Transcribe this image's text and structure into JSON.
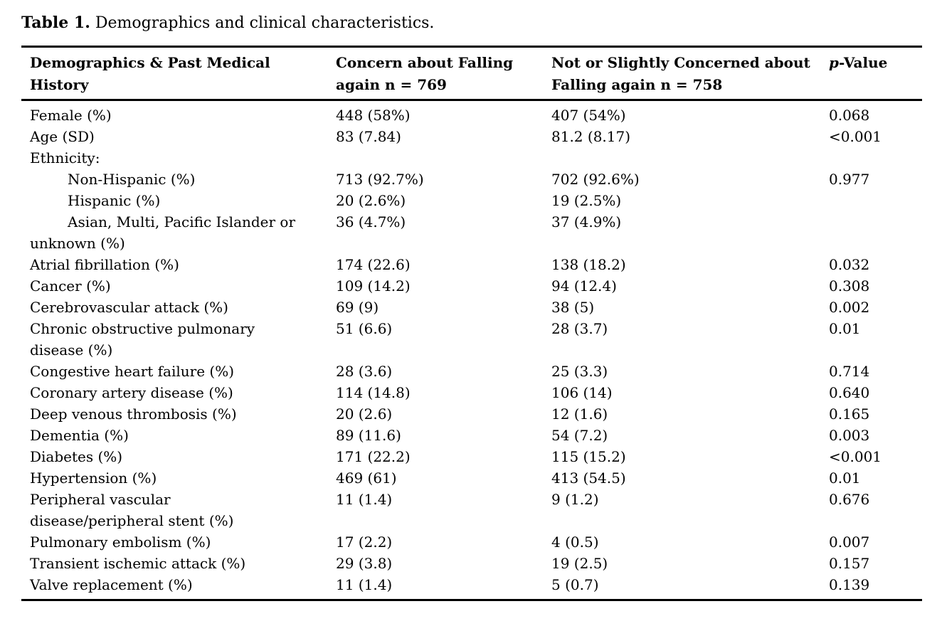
{
  "caption": {
    "label": "Table 1.",
    "text": " Demographics and clinical characteristics."
  },
  "table": {
    "headers": {
      "demographics": "Demographics & Past Medical\nHistory",
      "concern": "Concern about Falling\nagain n = 769",
      "not_concerned": "Not or Slightly Concerned about\nFalling again n = 758",
      "p_italic": "p",
      "p_rest": "-Value"
    },
    "rows": [
      {
        "label": "Female (%)",
        "concern": "448 (58%)",
        "not_concerned": "407 (54%)",
        "p": "0.068"
      },
      {
        "label": "Age (SD)",
        "concern": "83 (7.84)",
        "not_concerned": "81.2 (8.17)",
        "p": "<0.001"
      },
      {
        "label": "Ethnicity:",
        "concern": "",
        "not_concerned": "",
        "p": ""
      },
      {
        "label": "Non-Hispanic (%)",
        "concern": "713 (92.7%)",
        "not_concerned": "702 (92.6%)",
        "p": "0.977"
      },
      {
        "label": "Hispanic (%)",
        "concern": "20 (2.6%)",
        "not_concerned": "19 (2.5%)",
        "p": ""
      },
      {
        "label": "Asian, Multi, Pacific Islander or\nunknown (%)",
        "concern": "36 (4.7%)",
        "not_concerned": "37 (4.9%)",
        "p": ""
      },
      {
        "label": "Atrial fibrillation (%)",
        "concern": "174 (22.6)",
        "not_concerned": "138 (18.2)",
        "p": "0.032"
      },
      {
        "label": "Cancer (%)",
        "concern": "109 (14.2)",
        "not_concerned": "94 (12.4)",
        "p": "0.308"
      },
      {
        "label": "Cerebrovascular attack (%)",
        "concern": "69 (9)",
        "not_concerned": "38 (5)",
        "p": "0.002"
      },
      {
        "label": "Chronic obstructive pulmonary\ndisease (%)",
        "concern": "51 (6.6)",
        "not_concerned": "28 (3.7)",
        "p": "0.01"
      },
      {
        "label": "Congestive heart failure (%)",
        "concern": "28 (3.6)",
        "not_concerned": "25 (3.3)",
        "p": "0.714"
      },
      {
        "label": "Coronary artery disease (%)",
        "concern": "114 (14.8)",
        "not_concerned": "106 (14)",
        "p": "0.640"
      },
      {
        "label": "Deep venous thrombosis (%)",
        "concern": "20 (2.6)",
        "not_concerned": "12 (1.6)",
        "p": "0.165"
      },
      {
        "label": "Dementia (%)",
        "concern": "89 (11.6)",
        "not_concerned": "54 (7.2)",
        "p": "0.003"
      },
      {
        "label": "Diabetes (%)",
        "concern": "171 (22.2)",
        "not_concerned": "115 (15.2)",
        "p": "<0.001"
      },
      {
        "label": "Hypertension (%)",
        "concern": "469 (61)",
        "not_concerned": "413 (54.5)",
        "p": "0.01"
      },
      {
        "label": "Peripheral vascular\ndisease/peripheral stent (%)",
        "concern": "11 (1.4)",
        "not_concerned": "9 (1.2)",
        "p": "0.676"
      },
      {
        "label": "Pulmonary embolism (%)",
        "concern": "17 (2.2)",
        "not_concerned": "4 (0.5)",
        "p": "0.007"
      },
      {
        "label": "Transient ischemic attack (%)",
        "concern": "29 (3.8)",
        "not_concerned": "19 (2.5)",
        "p": "0.157"
      },
      {
        "label": "Valve replacement (%)",
        "concern": "11 (1.4)",
        "not_concerned": "5 (0.7)",
        "p": "0.139"
      }
    ]
  }
}
